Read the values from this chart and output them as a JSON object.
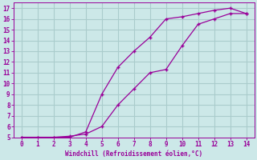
{
  "xlabel": "Windchill (Refroidissement éolien,°C)",
  "bg_color": "#cce8e8",
  "line_color": "#990099",
  "grid_color": "#aacccc",
  "xlim": [
    -0.5,
    14.5
  ],
  "ylim": [
    5,
    17.5
  ],
  "xticks": [
    0,
    1,
    2,
    3,
    4,
    5,
    6,
    7,
    8,
    9,
    10,
    11,
    12,
    13,
    14
  ],
  "yticks": [
    5,
    6,
    7,
    8,
    9,
    10,
    11,
    12,
    13,
    14,
    15,
    16,
    17
  ],
  "curve1_x": [
    0,
    1,
    2,
    3,
    4,
    5,
    6,
    7,
    8,
    9,
    10,
    11,
    12,
    13,
    14
  ],
  "curve1_y": [
    5.0,
    5.0,
    5.0,
    5.0,
    5.5,
    9.0,
    11.5,
    13.0,
    14.3,
    16.0,
    16.2,
    16.5,
    16.8,
    17.0,
    16.5
  ],
  "curve2_x": [
    0,
    1,
    2,
    3,
    4,
    5,
    6,
    7,
    8,
    9,
    10,
    11,
    12,
    13,
    14
  ],
  "curve2_y": [
    5.0,
    5.0,
    5.0,
    5.1,
    5.3,
    6.0,
    8.0,
    9.5,
    11.0,
    11.3,
    13.5,
    15.5,
    16.0,
    16.5,
    16.5
  ]
}
